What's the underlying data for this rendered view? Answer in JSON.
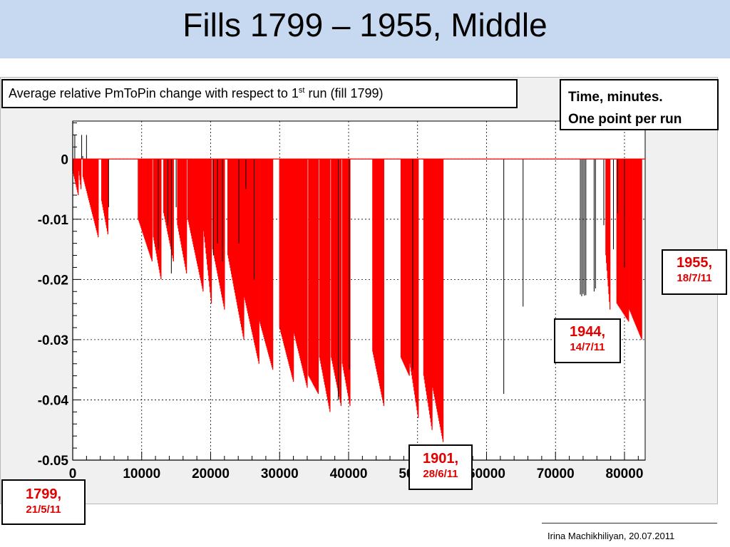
{
  "slide": {
    "title": "Fills 1799 – 1955, Middle",
    "footer": "Irina Machikhiliyan, 20.07.2011"
  },
  "annotations": {
    "title_pre": "Average relative PmToPin change with respect to 1",
    "title_sup": "st",
    "title_post": " run (fill 1799)",
    "time_line1": "Time, minutes.",
    "time_line2": "One point per run",
    "fill_1955": {
      "num": "1955,",
      "date": "18/7/11"
    },
    "fill_1944": {
      "num": "1944,",
      "date": "14/7/11"
    },
    "fill_1901": {
      "num": "1901,",
      "date": "28/6/11"
    },
    "fill_1799": {
      "num": "1799,",
      "date": "21/5/11"
    }
  },
  "colors": {
    "header_band": "#c6d9f1",
    "series_red": "#ff0000",
    "series_black": "#000000",
    "label_red": "#e00000",
    "frame_bg": "#f0f0f0"
  },
  "chart_data": {
    "type": "bar",
    "title": "",
    "xlabel": "",
    "ylabel": "",
    "xlim": [
      0,
      83000
    ],
    "ylim": [
      -0.05,
      0.005
    ],
    "x_ticks": [
      0,
      10000,
      20000,
      30000,
      40000,
      50000,
      60000,
      70000,
      80000
    ],
    "x_tick_labels": [
      "0",
      "10000",
      "20000",
      "30000",
      "40000",
      "50000",
      "60000",
      "70000",
      "80000"
    ],
    "y_ticks": [
      0,
      -0.01,
      -0.02,
      -0.03,
      -0.04,
      -0.05
    ],
    "y_tick_labels": [
      "0",
      "-0.01",
      "-0.02",
      "-0.03",
      "-0.04",
      "-0.05"
    ],
    "grid": true,
    "reference_line": 0,
    "series": [
      {
        "color": "red",
        "groups": [
          {
            "x_start": 0,
            "x_end": 800,
            "y_start": -0.002,
            "y_end": -0.006
          },
          {
            "x_start": 900,
            "x_end": 1200,
            "y_start": -0.002,
            "y_end": -0.005
          },
          {
            "x_start": 1500,
            "x_end": 3700,
            "y_start": -0.003,
            "y_end": -0.013
          },
          {
            "x_start": 4200,
            "x_end": 5100,
            "y_start": -0.007,
            "y_end": -0.0125
          },
          {
            "x_start": 9500,
            "x_end": 11500,
            "y_start": -0.01,
            "y_end": -0.017
          },
          {
            "x_start": 11700,
            "x_end": 12800,
            "y_start": -0.013,
            "y_end": -0.02
          },
          {
            "x_start": 13200,
            "x_end": 14600,
            "y_start": -0.009,
            "y_end": -0.017
          },
          {
            "x_start": 15200,
            "x_end": 16500,
            "y_start": -0.011,
            "y_end": -0.019
          },
          {
            "x_start": 16700,
            "x_end": 18900,
            "y_start": -0.01,
            "y_end": -0.022
          },
          {
            "x_start": 19000,
            "x_end": 20100,
            "y_start": -0.012,
            "y_end": -0.024
          },
          {
            "x_start": 20300,
            "x_end": 22000,
            "y_start": -0.015,
            "y_end": -0.025
          },
          {
            "x_start": 22500,
            "x_end": 24800,
            "y_start": -0.016,
            "y_end": -0.03
          },
          {
            "x_start": 24900,
            "x_end": 27000,
            "y_start": -0.023,
            "y_end": -0.034
          },
          {
            "x_start": 27100,
            "x_end": 29000,
            "y_start": -0.027,
            "y_end": -0.035
          },
          {
            "x_start": 30000,
            "x_end": 32000,
            "y_start": -0.028,
            "y_end": -0.037
          },
          {
            "x_start": 32100,
            "x_end": 34000,
            "y_start": -0.029,
            "y_end": -0.038
          },
          {
            "x_start": 34200,
            "x_end": 35600,
            "y_start": -0.036,
            "y_end": -0.039
          },
          {
            "x_start": 35800,
            "x_end": 37300,
            "y_start": -0.033,
            "y_end": -0.042
          },
          {
            "x_start": 37500,
            "x_end": 38900,
            "y_start": -0.033,
            "y_end": -0.041
          },
          {
            "x_start": 39100,
            "x_end": 40200,
            "y_start": -0.034,
            "y_end": -0.041
          },
          {
            "x_start": 43500,
            "x_end": 45100,
            "y_start": -0.032,
            "y_end": -0.041
          },
          {
            "x_start": 47600,
            "x_end": 48800,
            "y_start": -0.033,
            "y_end": -0.036
          },
          {
            "x_start": 48900,
            "x_end": 50100,
            "y_start": -0.034,
            "y_end": -0.043
          },
          {
            "x_start": 50900,
            "x_end": 52100,
            "y_start": -0.036,
            "y_end": -0.045
          },
          {
            "x_start": 52200,
            "x_end": 53700,
            "y_start": -0.038,
            "y_end": -0.047
          },
          {
            "x_start": 77300,
            "x_end": 77900,
            "y_start": -0.016,
            "y_end": -0.025
          },
          {
            "x_start": 78900,
            "x_end": 80600,
            "y_start": -0.024,
            "y_end": -0.027
          },
          {
            "x_start": 80700,
            "x_end": 82500,
            "y_start": -0.025,
            "y_end": -0.03
          }
        ]
      },
      {
        "color": "black",
        "points": [
          {
            "x": 300,
            "y": 0.004
          },
          {
            "x": 1300,
            "y": 0.004
          },
          {
            "x": 1450,
            "y": 0.0005
          },
          {
            "x": 2000,
            "y": 0.004
          },
          {
            "x": 5200,
            "y": -0.008
          },
          {
            "x": 12400,
            "y": -0.015
          },
          {
            "x": 13800,
            "y": -0.011
          },
          {
            "x": 15000,
            "y": -0.008
          },
          {
            "x": 14300,
            "y": -0.019
          },
          {
            "x": 21000,
            "y": -0.014
          },
          {
            "x": 20400,
            "y": -0.016
          },
          {
            "x": 21700,
            "y": -0.017
          },
          {
            "x": 24100,
            "y": -0.014
          },
          {
            "x": 25100,
            "y": -0.005
          },
          {
            "x": 26300,
            "y": -0.02
          },
          {
            "x": 38500,
            "y": -0.04
          },
          {
            "x": 40100,
            "y": -0.035
          },
          {
            "x": 49300,
            "y": -0.035
          },
          {
            "x": 62500,
            "y": -0.039
          },
          {
            "x": 65300,
            "y": -0.0245
          },
          {
            "x": 73600,
            "y": -0.0225
          },
          {
            "x": 73800,
            "y": -0.0228
          },
          {
            "x": 74000,
            "y": -0.0224
          },
          {
            "x": 74200,
            "y": -0.0227
          },
          {
            "x": 74400,
            "y": -0.0226
          },
          {
            "x": 75600,
            "y": -0.022
          },
          {
            "x": 75800,
            "y": -0.0215
          },
          {
            "x": 77000,
            "y": -0.011
          },
          {
            "x": 78400,
            "y": -0.015
          },
          {
            "x": 79000,
            "y": -0.009
          },
          {
            "x": 80000,
            "y": -0.018
          }
        ]
      }
    ]
  }
}
